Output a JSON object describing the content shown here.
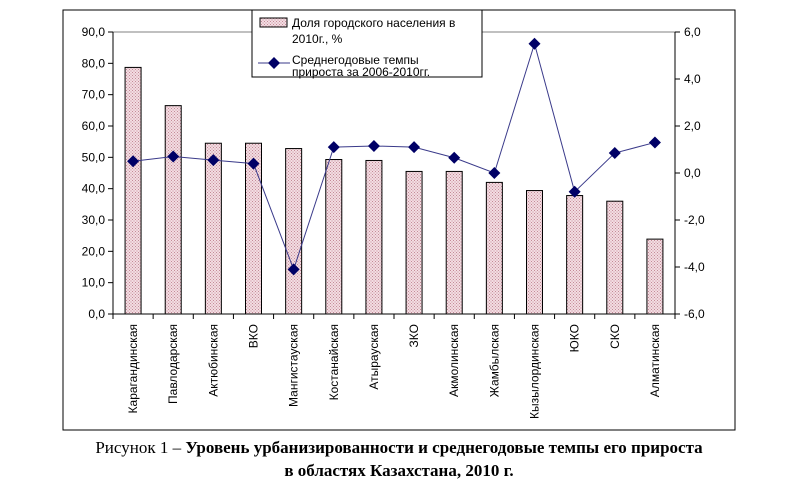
{
  "chart_data": {
    "type": "bar+line",
    "categories": [
      "Карагандинская",
      "Павлодарская",
      "Актюбинская",
      "ВКО",
      "Мангистауская",
      "Костанайская",
      "Атырауская",
      "ЗКО",
      "Акмолинская",
      "Жамбылская",
      "Кызылординская",
      "ЮКО",
      "СКО",
      "Алматинская"
    ],
    "series": [
      {
        "name": "Доля городского населения в 2010г., %",
        "type": "bar",
        "axis": "left",
        "color": "#e8c4cc",
        "values": [
          78.7,
          66.5,
          54.5,
          54.5,
          52.8,
          49.3,
          49.0,
          45.5,
          45.5,
          42.0,
          39.4,
          37.8,
          36.0,
          23.9
        ]
      },
      {
        "name": "Среднегодовые темпы прироста за 2006-2010гг.",
        "type": "line",
        "axis": "right",
        "color": "#000066",
        "values": [
          0.5,
          0.7,
          0.55,
          0.4,
          -4.1,
          1.1,
          1.15,
          1.1,
          0.65,
          0.0,
          5.5,
          -0.8,
          0.85,
          1.3
        ]
      }
    ],
    "legend_lines": [
      [
        "Доля городского населения в",
        "2010г., %"
      ],
      [
        "Среднегодовые темпы",
        "прироста за 2006-2010гг."
      ]
    ],
    "left_axis": {
      "ylim": [
        0,
        90
      ],
      "ticks": [
        "0,0",
        "10,0",
        "20,0",
        "30,0",
        "40,0",
        "50,0",
        "60,0",
        "70,0",
        "80,0",
        "90,0"
      ]
    },
    "right_axis": {
      "ylim": [
        -6,
        6
      ],
      "ticks": [
        "-6,0",
        "-4,0",
        "-2,0",
        "0,0",
        "2,0",
        "4,0",
        "6,0"
      ]
    },
    "legend_position": "top-center",
    "grid": false
  },
  "caption": {
    "prefix": "Рисунок 1 – ",
    "title_line1": "Уровень урбанизированности и среднегодовые темпы его прироста",
    "title_line2": "в областях Казахстана, 2010 г."
  }
}
